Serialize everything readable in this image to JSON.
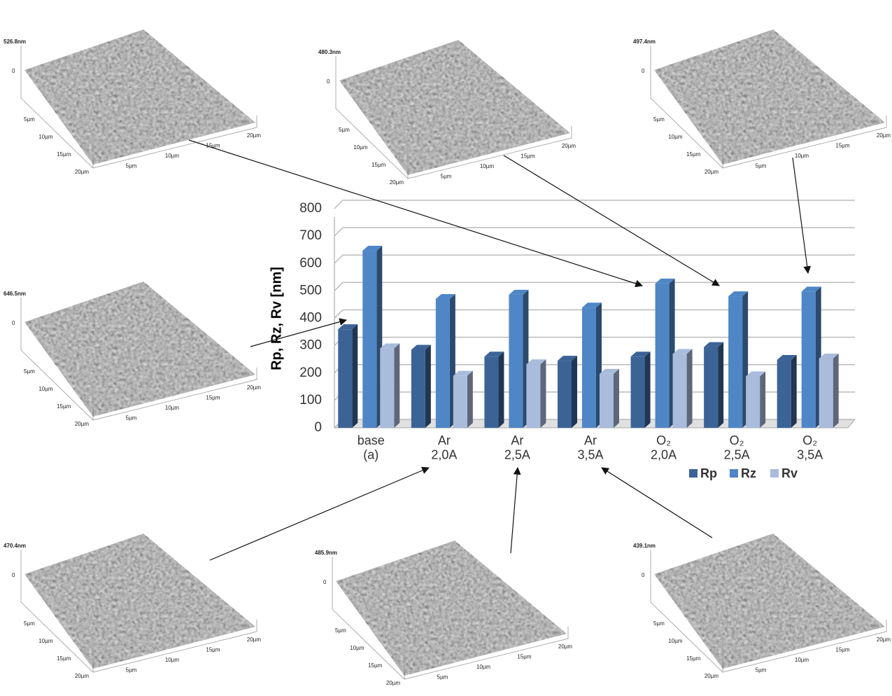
{
  "chart_data": {
    "type": "bar3d",
    "y_label": "Rp, Rz, Rv [nm]",
    "categories": [
      "base\n(a)",
      "Ar\n2,0A",
      "Ar\n2,5A",
      "Ar\n3,5A",
      "O₂\n2,0A",
      "O₂\n2,5A",
      "O₂\n3,5A"
    ],
    "series": [
      {
        "name": "Rp",
        "color": "#3b6396",
        "values": [
          360,
          285,
          260,
          245,
          260,
          295,
          248
        ]
      },
      {
        "name": "Rz",
        "color": "#4f86c6",
        "values": [
          646.5,
          470.4,
          485.9,
          439.1,
          526.8,
          480.3,
          497.4
        ]
      },
      {
        "name": "Rv",
        "color": "#a9bcdc",
        "values": [
          290,
          190,
          232,
          197,
          270,
          188,
          253
        ]
      }
    ],
    "ylim": [
      0,
      800
    ],
    "yticks": [
      0,
      100,
      200,
      300,
      400,
      500,
      600,
      700,
      800
    ],
    "grid": true
  },
  "afm_images": [
    {
      "height": "526.8nm",
      "zero": "0",
      "left_ticks": [
        "5µm",
        "10µm",
        "15µm",
        "20µm"
      ],
      "right_ticks": [
        "5µm",
        "10µm",
        "15µm",
        "20µm"
      ]
    },
    {
      "height": "480.3nm",
      "zero": "0",
      "left_ticks": [
        "5µm",
        "10µm",
        "15µm",
        "20µm"
      ],
      "right_ticks": [
        "5µm",
        "10µm",
        "15µm",
        "20µm"
      ]
    },
    {
      "height": "497.4nm",
      "zero": "0",
      "left_ticks": [
        "5µm",
        "10µm",
        "15µm",
        "20µm"
      ],
      "right_ticks": [
        "5µm",
        "10µm",
        "15µm",
        "20µm"
      ]
    },
    {
      "height": "646.5nm",
      "zero": "0",
      "left_ticks": [
        "5µm",
        "10µm",
        "15µm",
        "20µm"
      ],
      "right_ticks": [
        "5µm",
        "10µm",
        "15µm",
        "20µm"
      ]
    },
    {
      "height": "470.4nm",
      "zero": "0",
      "left_ticks": [
        "5µm",
        "10µm",
        "15µm",
        "20µm"
      ],
      "right_ticks": [
        "5µm",
        "10µm",
        "15µm",
        "20µm"
      ]
    },
    {
      "height": "485.9nm",
      "zero": "0",
      "left_ticks": [
        "5µm",
        "10µm",
        "15µm",
        "20µm"
      ],
      "right_ticks": [
        "5µm",
        "10µm",
        "15µm",
        "20µm"
      ]
    },
    {
      "height": "439.1nm",
      "zero": "0",
      "left_ticks": [
        "5µm",
        "10µm",
        "15µm",
        "20µm"
      ],
      "right_ticks": [
        "5µm",
        "10µm",
        "15µm",
        "20µm"
      ]
    }
  ]
}
